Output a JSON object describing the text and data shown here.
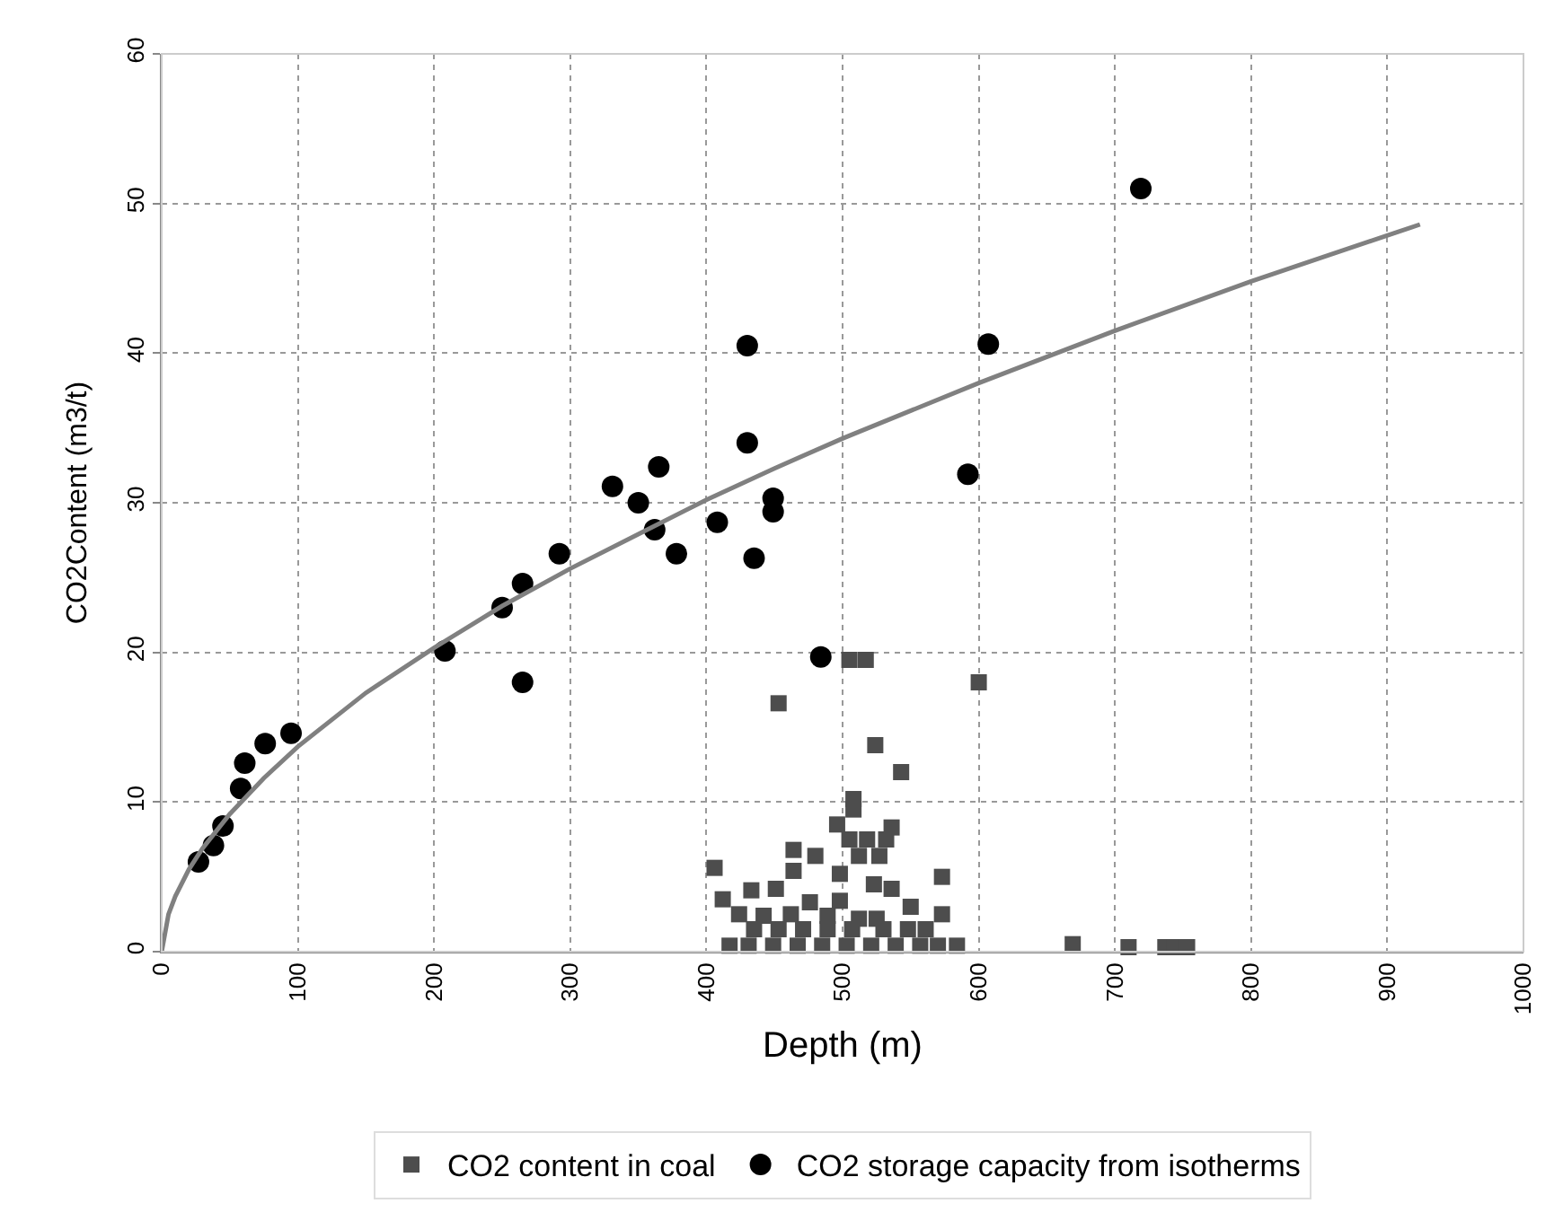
{
  "chart_data": {
    "type": "scatter",
    "xlabel": "Depth (m)",
    "ylabel": "CO2Content (m3/t)",
    "xlim": [
      0,
      1000
    ],
    "xticks": [
      0,
      100,
      200,
      300,
      400,
      500,
      600,
      700,
      800,
      900,
      1000
    ],
    "ylim": [
      0,
      60
    ],
    "yticks": [
      0,
      10,
      20,
      30,
      40,
      50,
      60
    ],
    "grid": true,
    "legend": "bottom",
    "series": [
      {
        "name": "CO2 content in coal",
        "color": "#4d4d4d",
        "marker": "square",
        "x": [
          505,
          517,
          600,
          453,
          524,
          543,
          508,
          508,
          496,
          536,
          505,
          518,
          532,
          464,
          480,
          512,
          527,
          406,
          573,
          464,
          498,
          433,
          451,
          523,
          536,
          412,
          476,
          498,
          550,
          424,
          442,
          462,
          489,
          512,
          525,
          573,
          435,
          453,
          471,
          489,
          507,
          530,
          548,
          561,
          417,
          431,
          449,
          467,
          485,
          503,
          521,
          539,
          557,
          570,
          584,
          669,
          710,
          737,
          744,
          753
        ],
        "values": [
          19.5,
          19.5,
          18.0,
          16.6,
          13.8,
          12.0,
          10.2,
          9.5,
          8.5,
          8.3,
          7.5,
          7.5,
          7.5,
          6.8,
          6.4,
          6.4,
          6.4,
          5.6,
          5.0,
          5.4,
          5.2,
          4.1,
          4.2,
          4.5,
          4.2,
          3.5,
          3.3,
          3.4,
          3.0,
          2.5,
          2.4,
          2.5,
          2.4,
          2.2,
          2.2,
          2.5,
          1.5,
          1.5,
          1.5,
          1.5,
          1.5,
          1.5,
          1.5,
          1.5,
          0.4,
          0.4,
          0.4,
          0.4,
          0.4,
          0.4,
          0.4,
          0.4,
          0.4,
          0.4,
          0.4,
          0.5,
          0.3,
          0.3,
          0.3,
          0.3
        ]
      },
      {
        "name": "CO2 storage capacity from isotherms",
        "color": "#000000",
        "marker": "circle",
        "x": [
          27,
          38,
          45,
          58,
          61,
          76,
          95,
          208,
          250,
          265,
          265,
          292,
          331,
          350,
          365,
          362,
          378,
          408,
          430,
          430,
          435,
          449,
          449,
          484,
          592,
          607,
          719
        ],
        "values": [
          6.0,
          7.1,
          8.4,
          10.9,
          12.6,
          13.9,
          14.6,
          20.1,
          23.0,
          24.6,
          18.0,
          26.6,
          31.1,
          30.0,
          32.4,
          28.2,
          26.6,
          28.7,
          34.0,
          40.5,
          26.3,
          30.3,
          29.4,
          19.7,
          31.9,
          40.6,
          51.0
        ]
      },
      {
        "type": "line",
        "color": "#808080",
        "line_style": "solid",
        "x": [
          0,
          5,
          10,
          20,
          30,
          50,
          75,
          100,
          150,
          200,
          250,
          300,
          350,
          400,
          450,
          500,
          600,
          700,
          800,
          924
        ],
        "values": [
          0,
          2.5,
          3.7,
          5.5,
          6.9,
          9.2,
          11.6,
          13.7,
          17.3,
          20.3,
          23.1,
          25.6,
          27.9,
          30.2,
          32.3,
          34.3,
          38.0,
          41.5,
          44.8,
          48.6
        ]
      }
    ]
  }
}
